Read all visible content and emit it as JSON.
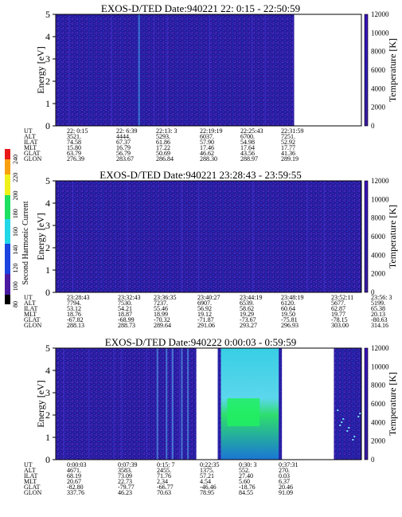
{
  "colors": {
    "background": "#2a1a9c",
    "axis": "#000000",
    "gap": "#ffffff"
  },
  "chart_data": [
    {
      "type": "heatmap",
      "title": "EXOS-D/TED   Date:940221  22: 0:15 - 22:50:59",
      "ylabel": "Energy [eV]",
      "ylim": [
        0,
        5
      ],
      "yticks": [
        "0",
        "1",
        "2",
        "3",
        "4",
        "5"
      ],
      "colorbar_label": "Temperature [K]",
      "colorbar_range": [
        0,
        12000
      ],
      "colorbar_ticks": [
        "0",
        "2000",
        "4000",
        "6000",
        "8000",
        "10000",
        "12000"
      ],
      "columns": [
        {
          "UT": "22: 0:15",
          "ALT": "3521.",
          "ILAT": "74.58",
          "MLT": "15.80",
          "GLAT": "63.79",
          "GLON": "276.39"
        },
        {
          "UT": "22: 6:39",
          "ALT": "4444.",
          "ILAT": "67.37",
          "MLT": "16.79",
          "GLAT": "56.79",
          "GLON": "283.67"
        },
        {
          "UT": "22:13: 3",
          "ALT": "5293.",
          "ILAT": "61.86",
          "MLT": "17.22",
          "GLAT": "50.69",
          "GLON": "286.84"
        },
        {
          "UT": "22:19:19",
          "ALT": "6037.",
          "ILAT": "57.90",
          "MLT": "17.46",
          "GLAT": "46.62",
          "GLON": "288.30"
        },
        {
          "UT": "22:25:43",
          "ALT": "6700.",
          "ILAT": "54.98",
          "MLT": "17.64",
          "GLAT": "43.56",
          "GLON": "288.97"
        },
        {
          "UT": "22:31:59",
          "ALT": "7251.",
          "ILAT": "52.92",
          "MLT": "17.77",
          "GLAT": "41.36",
          "GLON": "289.19"
        },
        {
          "UT": "22:50:59",
          "ALT": "8299.",
          "ILAT": "49.97",
          "MLT": "18.08",
          "GLAT": "38.09",
          "GLON": "288.83"
        }
      ],
      "data_coverage": [
        [
          0.0,
          0.78
        ]
      ],
      "intensity_note": "uniform low level"
    },
    {
      "type": "heatmap",
      "title": "EXOS-D/TED   Date:940221  23:28:43 - 23:59:55",
      "ylabel": "Energy [eV]",
      "ylim": [
        0,
        5
      ],
      "yticks": [
        "0",
        "1",
        "2",
        "3",
        "4",
        "5"
      ],
      "colorbar_label": "Temperature [K]",
      "colorbar_range": [
        0,
        12000
      ],
      "colorbar_ticks": [
        "0",
        "2000",
        "4000",
        "6000",
        "8000",
        "10000",
        "12000"
      ],
      "columns": [
        {
          "UT": "23:28:43",
          "ALT": "7794.",
          "ILAT": "53.12",
          "MLT": "18.76",
          "GLAT": "-67.82",
          "GLON": "288.13"
        },
        {
          "UT": "23:32:43",
          "ALT": "7530.",
          "ILAT": "54.21",
          "MLT": "18.87",
          "GLAT": "-68.99",
          "GLON": "288.73"
        },
        {
          "UT": "23:36:35",
          "ALT": "7237.",
          "ILAT": "55.46",
          "MLT": "18.99",
          "GLAT": "-70.32",
          "GLON": "289.64"
        },
        {
          "UT": "23:40:27",
          "ALT": "6907.",
          "ILAT": "56.92",
          "MLT": "19.12",
          "GLAT": "-71.87",
          "GLON": "291.06"
        },
        {
          "UT": "23:44:19",
          "ALT": "6539.",
          "ILAT": "58.62",
          "MLT": "19.29",
          "GLAT": "-73.67",
          "GLON": "293.27"
        },
        {
          "UT": "23:48:19",
          "ALT": "6120.",
          "ILAT": "60.64",
          "MLT": "19.50",
          "GLAT": "-75.81",
          "GLON": "296.93"
        },
        {
          "UT": "23:52:11",
          "ALT": "5677.",
          "ILAT": "62.87",
          "MLT": "19.77",
          "GLAT": "-78.15",
          "GLON": "303.00"
        },
        {
          "UT": "23:56: 3",
          "ALT": "5199.",
          "ILAT": "65.38",
          "MLT": "20.13",
          "GLAT": "-80.63",
          "GLON": "314.16"
        },
        {
          "UT": "23:59:55",
          "ALT": "4689.",
          "ILAT": "68.10",
          "MLT": "20.65",
          "GLAT": "-82.75",
          "GLON": "336.69"
        }
      ],
      "data_coverage": [
        [
          0.0,
          1.0
        ]
      ],
      "intensity_note": "uniform low level"
    },
    {
      "type": "heatmap",
      "title": "EXOS-D/TED   Date:940222  0:00:03 - 0:59:59",
      "ylabel": "Energy [eV]",
      "ylim": [
        0,
        5
      ],
      "yticks": [
        "0",
        "1",
        "2",
        "3",
        "4",
        "5"
      ],
      "colorbar_label": "Temperature [K]",
      "colorbar_range": [
        0,
        12000
      ],
      "colorbar_ticks": [
        "0",
        "2000",
        "4000",
        "6000",
        "8000",
        "10000",
        "12000"
      ],
      "columns": [
        {
          "UT": "0:00:03",
          "ALT": "4671.",
          "ILAT": "68.19",
          "MLT": "20.67",
          "GLAT": "-82.80",
          "GLON": "337.76"
        },
        {
          "UT": "0:07:39",
          "ALT": "3583.",
          "ILAT": "73.09",
          "MLT": "22.73",
          "GLAT": "-79.77",
          "GLON": "46.23"
        },
        {
          "UT": "0:15: 7",
          "ALT": "2455.",
          "ILAT": "71.76",
          "MLT": "2.34",
          "GLAT": "-66.77",
          "GLON": "70.63"
        },
        {
          "UT": "0:22:35",
          "ALT": "1375.",
          "ILAT": "57.21",
          "MLT": "4.54",
          "GLAT": "-46.46",
          "GLON": "78.95"
        },
        {
          "UT": "0:30: 3",
          "ALT": "552.",
          "ILAT": "27.40",
          "MLT": "5.60",
          "GLAT": "-18.76",
          "GLON": "84.55"
        },
        {
          "UT": "0:37:31",
          "ALT": "270.",
          "ILAT": "0.03",
          "MLT": "6.37",
          "GLAT": "20.46",
          "GLON": "91.09"
        },
        {
          "UT": "0:55: 3",
          "ALT": "1908.",
          "ILAT": "71.71",
          "MLT": "10.06",
          "GLAT": "76.95",
          "GLON": "166.29"
        }
      ],
      "data_coverage": [
        [
          0.0,
          0.46
        ],
        [
          0.53,
          0.74
        ],
        [
          0.91,
          1.0
        ]
      ],
      "intensity_note": "enhanced between 0:30 and 0:37 UT"
    }
  ],
  "second_harmonic_colorbar": {
    "label": "Second Harmonic Current",
    "ticks": [
      "80",
      "100",
      "120",
      "140",
      "160",
      "180",
      "200",
      "220",
      "240"
    ]
  }
}
